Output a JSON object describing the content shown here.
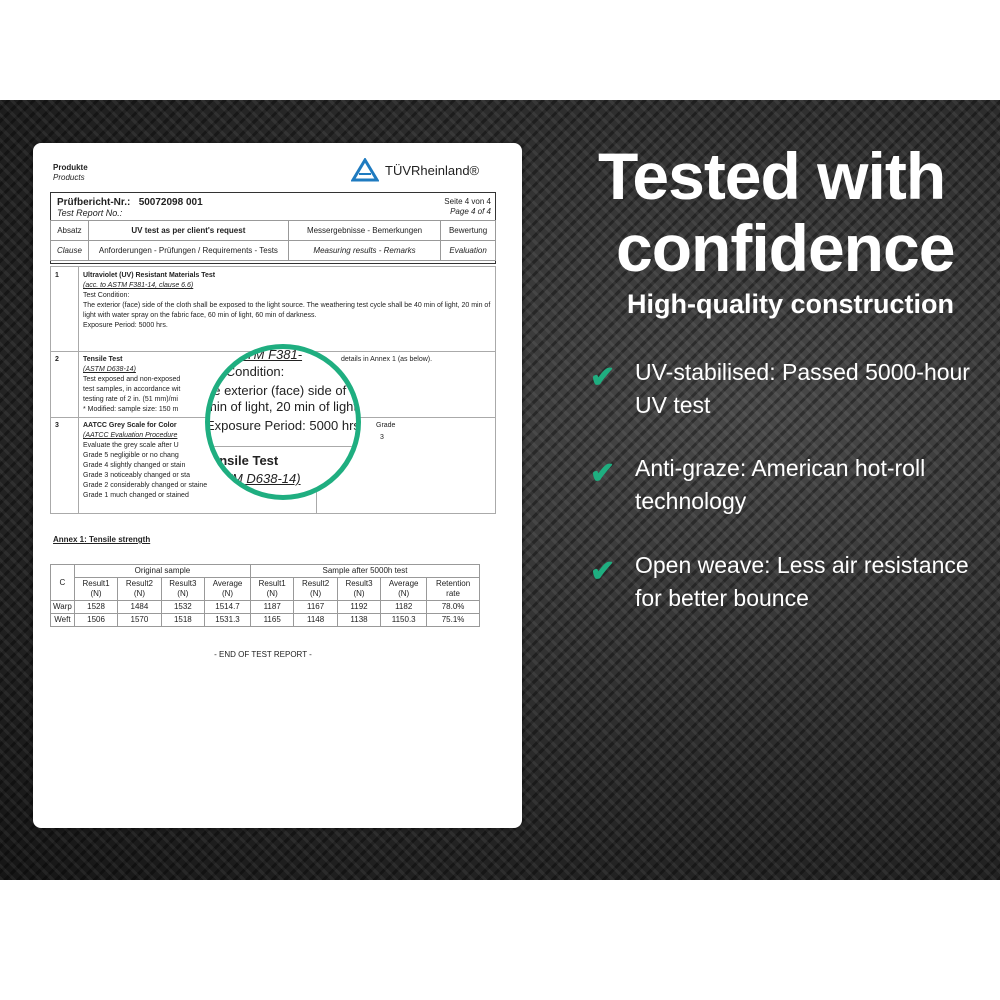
{
  "headline": {
    "line1": "Tested with",
    "line2": "confidence",
    "sub": "High-quality construction"
  },
  "features": [
    {
      "text": "UV-stabilised: Passed 5000-hour UV test",
      "icon": "check-icon"
    },
    {
      "text": "Anti-graze: American hot-roll technology",
      "icon": "check-icon"
    },
    {
      "text": "Open weave: Less air resistance for better bounce",
      "icon": "check-icon"
    }
  ],
  "accent": "#1fae80",
  "report": {
    "products_de": "Produkte",
    "products_en": "Products",
    "logo": "TÜVRheinland®",
    "report_no_label_de": "Prüfbericht-Nr.:",
    "report_no": "50072098 001",
    "report_no_label_en": "Test Report No.:",
    "page_de": "Seite 4 von 4",
    "page_en": "Page 4 of 4",
    "headers": {
      "clause_de": "Absatz",
      "clause_en": "Clause",
      "title": "UV test as per client's request",
      "req": "Anforderungen - Prüfungen / Requirements - Tests",
      "results_de": "Messergebnisse - Bemerkungen",
      "results_en": "Measuring results - Remarks",
      "eval_de": "Bewertung",
      "eval_en": "Evaluation"
    },
    "items": [
      {
        "no": "1",
        "title": "Ultraviolet (UV) Resistant Materials Test",
        "ref": "(acc. to ASTM F381-14, clause 6.6)",
        "l1": "Test Condition:",
        "l2": "The exterior (face) side of the cloth shall be exposed to the light source. The weathering test cycle shall be 40 min of light, 20 min of light with water spray on the fabric face, 60 min of light, 60 min of darkness.",
        "l3": "Exposure Period: 5000 hrs."
      },
      {
        "no": "2",
        "title": "Tensile Test",
        "ref": "(ASTM D638-14)",
        "l1": "Test exposed and non-exposed",
        "l2": "test samples, in accordance wit",
        "l3": "testing rate of 2 in. (51 mm)/mi",
        "l4": "* Modified: sample size: 150 m",
        "result": "details in Annex 1 (as below)."
      },
      {
        "no": "3",
        "title": "AATCC Grey Scale for Color",
        "ref": "(AATCC Evaluation Procedure",
        "l1": "Evaluate the grey scale after U",
        "l2": "Grade 5 negligible or no chang",
        "l3": "Grade 4 slightly changed or stain",
        "l4": "Grade 3 noticeably changed or sta",
        "l5": "Grade 2 considerably changed or staine",
        "l6": "Grade 1 much changed or stained",
        "result_label": "Grade",
        "result": "3"
      }
    ],
    "magnifier": {
      "l0": "o ASTM F381-",
      "l1": "st Condition:",
      "l2": "he exterior (face) side of",
      "l3": "min of light, 20 min of light",
      "l4": "Exposure Period: 5000 hrs.",
      "l5": "ensile Test",
      "l6": "TM D638-14)"
    },
    "annex_title": "Annex 1: Tensile strength",
    "annex": {
      "corner": "C",
      "group1": "Original sample",
      "group2": "Sample after 5000h test",
      "cols": [
        "Result1 (N)",
        "Result2 (N)",
        "Result3 (N)",
        "Average (N)",
        "Result1 (N)",
        "Result2 (N)",
        "Result3 (N)",
        "Average (N)",
        "Retention rate"
      ],
      "rows": [
        {
          "label": "Warp",
          "values": [
            "1528",
            "1484",
            "1532",
            "1514.7",
            "1187",
            "1167",
            "1192",
            "1182",
            "78.0%"
          ]
        },
        {
          "label": "Weft",
          "values": [
            "1506",
            "1570",
            "1518",
            "1531.3",
            "1165",
            "1148",
            "1138",
            "1150.3",
            "75.1%"
          ]
        }
      ]
    },
    "end": "- END OF TEST REPORT -"
  }
}
